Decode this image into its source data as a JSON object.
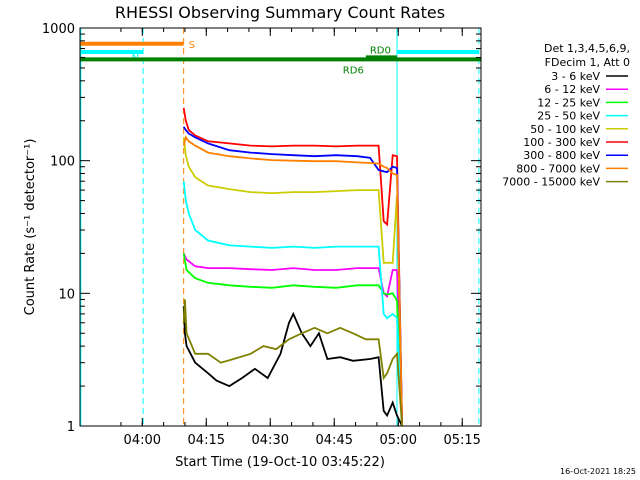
{
  "chart_data": {
    "type": "line",
    "title": "RHESSI Observing Summary Count Rates",
    "xlabel": "Start Time (19-Oct-10 03:45:22)",
    "ylabel": "Count Rate (s⁻¹ detector⁻¹)",
    "y_scale": "log",
    "ylim": [
      1,
      1000
    ],
    "xlim_min_after_start": [
      0,
      94
    ],
    "x_ticks": [
      {
        "label": "04:00",
        "min": 14.6
      },
      {
        "label": "04:15",
        "min": 29.6
      },
      {
        "label": "04:30",
        "min": 44.6
      },
      {
        "label": "04:45",
        "min": 59.6
      },
      {
        "label": "05:00",
        "min": 74.6
      },
      {
        "label": "05:15",
        "min": 89.6
      }
    ],
    "y_ticks": [
      {
        "label": "1",
        "value": 1
      },
      {
        "label": "10",
        "value": 10
      },
      {
        "label": "100",
        "value": 100
      },
      {
        "label": "1000",
        "value": 1000
      }
    ],
    "legend_header": [
      "Det 1,3,4,5,6,9,",
      "FDecim 1, Att 0"
    ],
    "legend_position": "right",
    "series": [
      {
        "name": "3 - 6 keV",
        "color": "#000000",
        "points": [
          [
            24.3,
            8
          ],
          [
            24.6,
            5
          ],
          [
            25,
            4
          ],
          [
            27,
            3
          ],
          [
            30,
            2.5
          ],
          [
            32,
            2.2
          ],
          [
            35,
            2
          ],
          [
            38,
            2.3
          ],
          [
            41,
            2.7
          ],
          [
            44,
            2.3
          ],
          [
            47,
            3.5
          ],
          [
            49,
            6
          ],
          [
            50,
            7
          ],
          [
            52,
            5
          ],
          [
            54,
            4
          ],
          [
            56,
            5
          ],
          [
            58,
            3.2
          ],
          [
            61,
            3.3
          ],
          [
            64,
            3.1
          ],
          [
            68,
            3.2
          ],
          [
            70,
            3.3
          ],
          [
            71.2,
            1.3
          ],
          [
            72,
            1.2
          ],
          [
            73.3,
            1.5
          ],
          [
            74.3,
            1.2
          ],
          [
            75.5,
            1
          ]
        ]
      },
      {
        "name": "6 - 12 keV",
        "color": "#ff00ff",
        "points": [
          [
            24.3,
            20
          ],
          [
            25,
            18
          ],
          [
            27,
            16
          ],
          [
            30,
            15.5
          ],
          [
            35,
            15.5
          ],
          [
            40,
            15.2
          ],
          [
            45,
            15
          ],
          [
            50,
            15.5
          ],
          [
            55,
            15
          ],
          [
            60,
            15
          ],
          [
            65,
            15.5
          ],
          [
            68,
            15.5
          ],
          [
            70,
            15.5
          ],
          [
            71.2,
            10
          ],
          [
            72,
            9.5
          ],
          [
            73.3,
            15
          ],
          [
            74.3,
            15
          ],
          [
            75.5,
            1
          ]
        ]
      },
      {
        "name": "12 - 25 keV",
        "color": "#00ff00",
        "points": [
          [
            24.3,
            20
          ],
          [
            25,
            15
          ],
          [
            27,
            13
          ],
          [
            30,
            12
          ],
          [
            35,
            11.5
          ],
          [
            40,
            11.2
          ],
          [
            45,
            11
          ],
          [
            50,
            11.5
          ],
          [
            55,
            11.2
          ],
          [
            60,
            11
          ],
          [
            65,
            11.5
          ],
          [
            68,
            11.5
          ],
          [
            70,
            11.5
          ],
          [
            71.2,
            10
          ],
          [
            72,
            9.8
          ],
          [
            73.3,
            10
          ],
          [
            74.3,
            8.8
          ],
          [
            75.5,
            1
          ]
        ]
      },
      {
        "name": "25 - 50 keV",
        "color": "#00ffff",
        "points": [
          [
            24.3,
            70
          ],
          [
            24.8,
            50
          ],
          [
            25.5,
            40
          ],
          [
            27,
            30
          ],
          [
            30,
            25
          ],
          [
            35,
            23
          ],
          [
            40,
            22.5
          ],
          [
            45,
            22
          ],
          [
            50,
            22.5
          ],
          [
            55,
            22
          ],
          [
            60,
            22.5
          ],
          [
            65,
            22.5
          ],
          [
            68,
            22.5
          ],
          [
            70,
            22.5
          ],
          [
            71.2,
            7
          ],
          [
            72,
            6.5
          ],
          [
            73.3,
            7
          ],
          [
            74.3,
            6.5
          ],
          [
            75.5,
            1
          ]
        ]
      },
      {
        "name": "50 - 100 keV",
        "color": "#cccc00",
        "points": [
          [
            24.3,
            150
          ],
          [
            24.8,
            110
          ],
          [
            25.5,
            90
          ],
          [
            27,
            75
          ],
          [
            30,
            65
          ],
          [
            35,
            61
          ],
          [
            40,
            58
          ],
          [
            45,
            57
          ],
          [
            50,
            58
          ],
          [
            55,
            58
          ],
          [
            60,
            59
          ],
          [
            65,
            60
          ],
          [
            68,
            60
          ],
          [
            70,
            60
          ],
          [
            71.2,
            17
          ],
          [
            72,
            17
          ],
          [
            73.3,
            17
          ],
          [
            74.3,
            55
          ],
          [
            75.5,
            1
          ]
        ]
      },
      {
        "name": "100 - 300 keV",
        "color": "#ff0000",
        "points": [
          [
            24.3,
            250
          ],
          [
            24.8,
            200
          ],
          [
            25.5,
            170
          ],
          [
            27,
            155
          ],
          [
            30,
            140
          ],
          [
            35,
            135
          ],
          [
            40,
            130
          ],
          [
            45,
            128
          ],
          [
            50,
            130
          ],
          [
            55,
            130
          ],
          [
            60,
            128
          ],
          [
            65,
            130
          ],
          [
            68,
            130
          ],
          [
            70,
            130
          ],
          [
            71.2,
            35
          ],
          [
            72,
            33
          ],
          [
            73.3,
            110
          ],
          [
            74.3,
            108
          ],
          [
            75.5,
            1
          ]
        ]
      },
      {
        "name": "300 - 800 keV",
        "color": "#0000ff",
        "points": [
          [
            24.3,
            180
          ],
          [
            24.8,
            170
          ],
          [
            25.5,
            160
          ],
          [
            27,
            150
          ],
          [
            30,
            135
          ],
          [
            35,
            120
          ],
          [
            40,
            115
          ],
          [
            45,
            112
          ],
          [
            50,
            110
          ],
          [
            55,
            108
          ],
          [
            60,
            110
          ],
          [
            65,
            108
          ],
          [
            68,
            105
          ],
          [
            70,
            85
          ],
          [
            71.2,
            83
          ],
          [
            72,
            82
          ],
          [
            73.3,
            90
          ],
          [
            74.3,
            88
          ],
          [
            75.5,
            1
          ]
        ]
      },
      {
        "name": "800 - 7000 keV",
        "color": "#ff8000",
        "points": [
          [
            24.3,
            130
          ],
          [
            24.8,
            150
          ],
          [
            25.5,
            140
          ],
          [
            27,
            130
          ],
          [
            30,
            115
          ],
          [
            35,
            108
          ],
          [
            40,
            104
          ],
          [
            45,
            101
          ],
          [
            50,
            100
          ],
          [
            55,
            99
          ],
          [
            60,
            99
          ],
          [
            65,
            97
          ],
          [
            68,
            96
          ],
          [
            70,
            95
          ],
          [
            71.2,
            90
          ],
          [
            72,
            88
          ],
          [
            73.3,
            80
          ],
          [
            74.3,
            78
          ],
          [
            75.5,
            1
          ]
        ]
      },
      {
        "name": "7000 - 15000 keV",
        "color": "#808000",
        "points": [
          [
            24.3,
            6
          ],
          [
            24.6,
            9
          ],
          [
            25,
            5
          ],
          [
            27,
            3.5
          ],
          [
            30,
            3.5
          ],
          [
            33,
            3
          ],
          [
            36,
            3.2
          ],
          [
            40,
            3.5
          ],
          [
            43,
            4
          ],
          [
            46,
            3.8
          ],
          [
            49,
            4.5
          ],
          [
            52,
            5
          ],
          [
            55,
            5.5
          ],
          [
            58,
            5
          ],
          [
            61,
            5.5
          ],
          [
            64,
            5
          ],
          [
            67,
            4.5
          ],
          [
            70,
            4.5
          ],
          [
            71.2,
            2.3
          ],
          [
            72,
            2.5
          ],
          [
            73.3,
            3.2
          ],
          [
            74.3,
            3.5
          ],
          [
            75.5,
            1
          ]
        ]
      }
    ],
    "flag_bars": [
      {
        "label": "S",
        "color": "#ff8000",
        "start": 0,
        "end": 24.3,
        "value": 760
      },
      {
        "label": "N",
        "color": "#00ffff",
        "start": 0,
        "end": 14.8,
        "value": 660
      },
      {
        "label": "RD6",
        "color": "#008000",
        "start": 0,
        "end": 94,
        "value": 580
      },
      {
        "label": "RD0",
        "color": "#008000",
        "start": 67,
        "end": 74.3,
        "value": 600
      },
      {
        "label": "",
        "color": "#00ffff",
        "start": 74.3,
        "end": 93.5,
        "value": 660
      }
    ],
    "vertical_markers": [
      {
        "min": 0.2,
        "color": "#00ffff",
        "style": "solid"
      },
      {
        "min": 14.8,
        "color": "#00ffff",
        "style": "dashed"
      },
      {
        "min": 24.3,
        "color": "#ff8000",
        "style": "dashed"
      },
      {
        "min": 74.3,
        "color": "#00ffff",
        "style": "solid"
      },
      {
        "min": 93.5,
        "color": "#00ffff",
        "style": "dashed"
      }
    ],
    "timestamp": "16-Oct-2021 18:25"
  }
}
